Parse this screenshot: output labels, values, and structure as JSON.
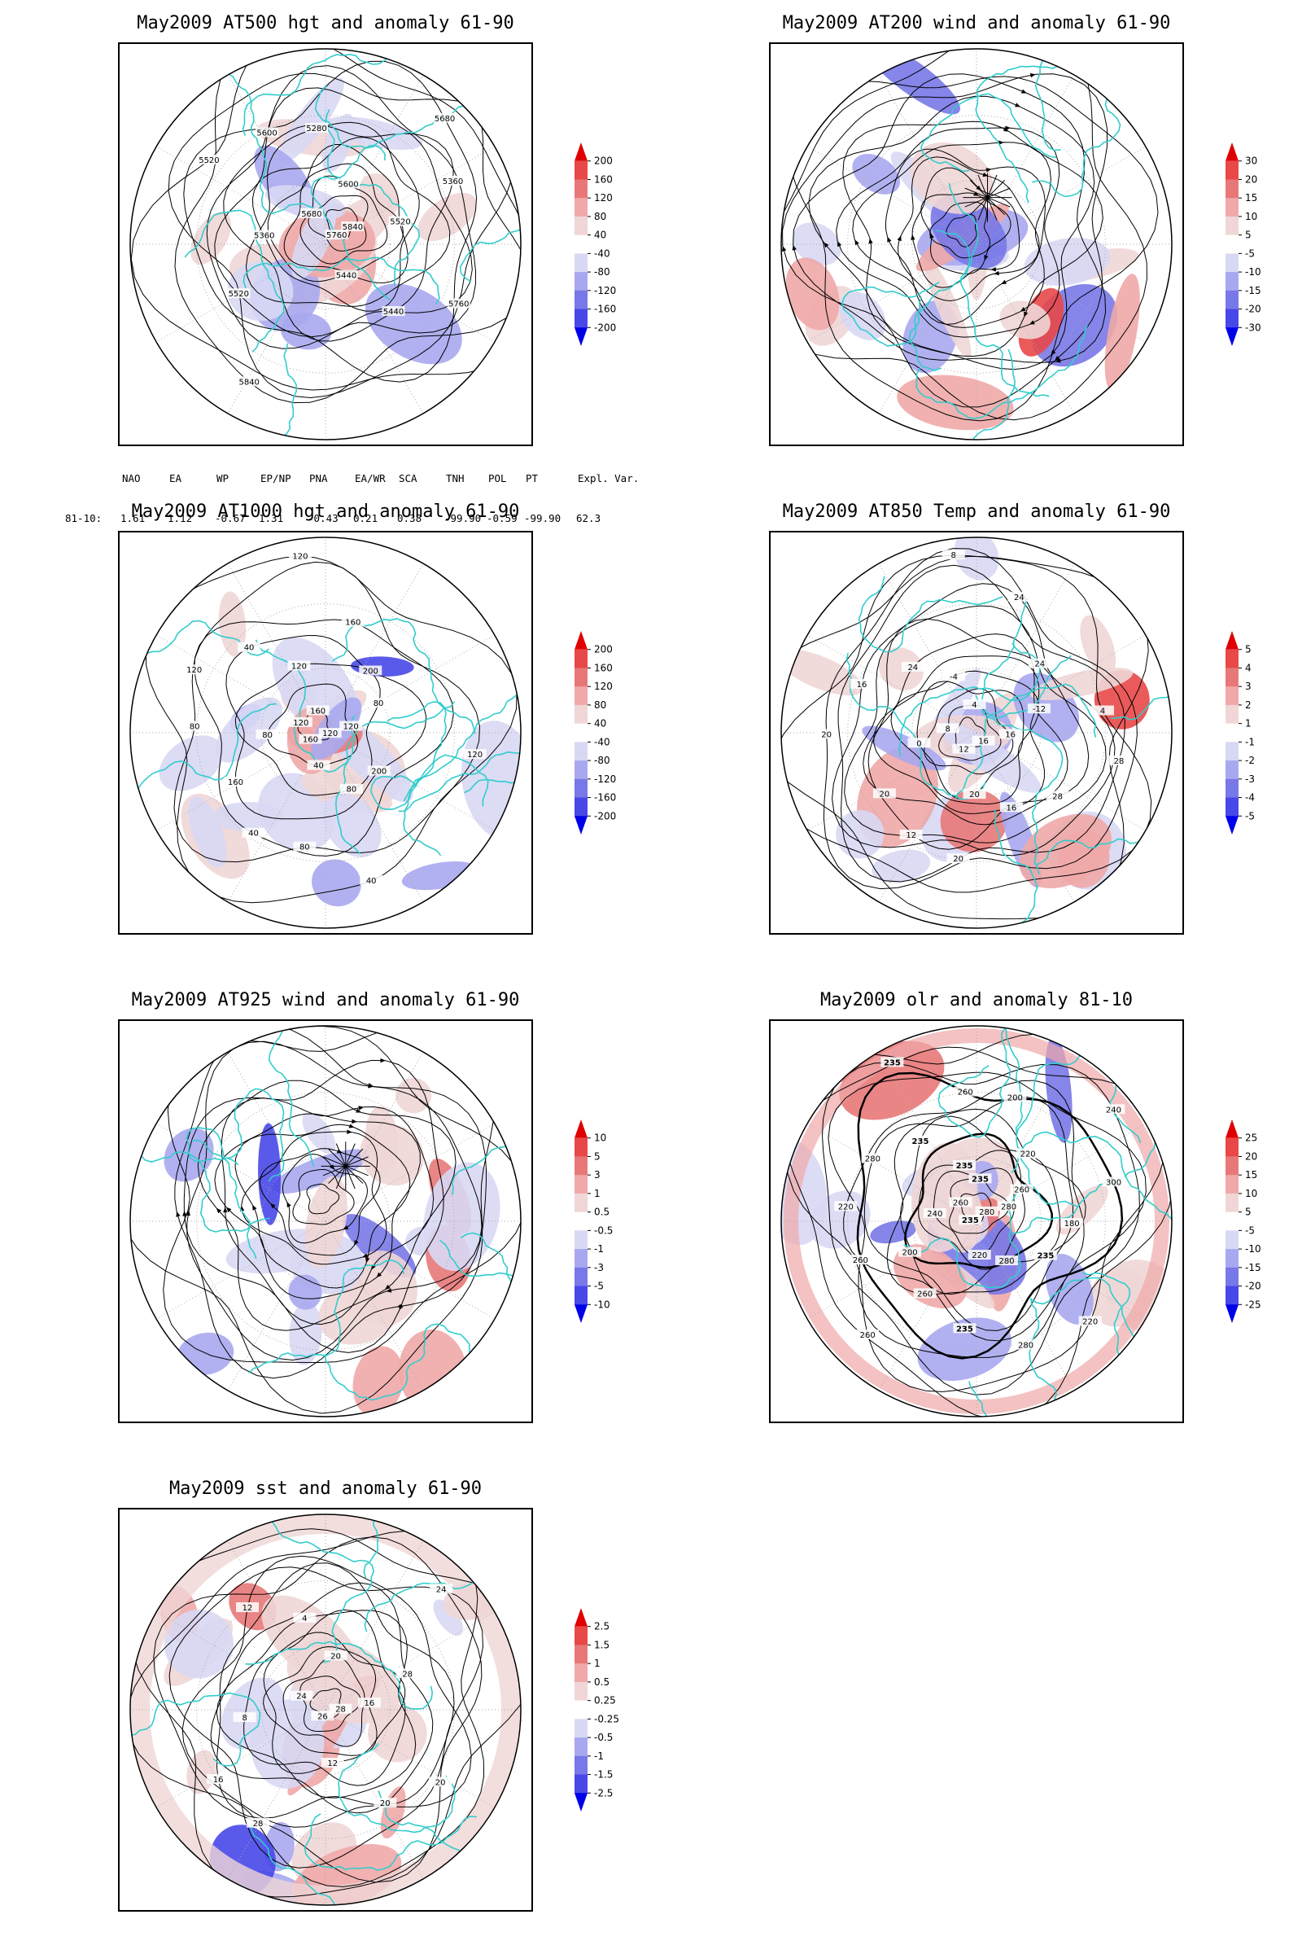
{
  "panels": [
    {
      "id": "at500",
      "title": "May2009 AT500 hgt and anomaly 61-90",
      "colorbar": [
        "200",
        "160",
        "120",
        "80",
        "40",
        "-40",
        "-80",
        "-120",
        "-160",
        "-200"
      ],
      "contour_labels": [
        "5840",
        "5760",
        "5680",
        "5600",
        "5520",
        "5440",
        "5360",
        "5280",
        "5360",
        "5440",
        "5520",
        "5600",
        "5680",
        "5760",
        "5840",
        "5520"
      ]
    },
    {
      "id": "at200",
      "title": "May2009 AT200 wind and anomaly 61-90",
      "colorbar": [
        "30",
        "20",
        "15",
        "10",
        "5",
        "-5",
        "-10",
        "-15",
        "-20",
        "-30"
      ],
      "contour_labels": []
    },
    {
      "id": "at1000",
      "title": "May2009 AT1000 hgt and anomaly 61-90",
      "colorbar": [
        "200",
        "160",
        "120",
        "80",
        "40",
        "-40",
        "-80",
        "-120",
        "-160",
        "-200"
      ],
      "contour_labels": [
        "120",
        "160",
        "120",
        "160",
        "120",
        "40",
        "80",
        "120",
        "80",
        "80",
        "160",
        "40",
        "200",
        "200",
        "40",
        "120",
        "160",
        "120",
        "80",
        "80",
        "120",
        "80",
        "40"
      ]
    },
    {
      "id": "at850",
      "title": "May2009 AT850 Temp and anomaly 61-90",
      "colorbar": [
        "5",
        "4",
        "3",
        "2",
        "1",
        "-1",
        "-2",
        "-3",
        "-4",
        "-5"
      ],
      "contour_labels": [
        "16",
        "12",
        "8",
        "4",
        "16",
        "20",
        "0",
        "-4",
        "-12",
        "16",
        "20",
        "24",
        "24",
        "28",
        "12",
        "16",
        "24",
        "28",
        "20",
        "20",
        "8",
        "4",
        "16"
      ]
    },
    {
      "id": "at925",
      "title": "May2009 AT925 wind and anomaly 61-90",
      "colorbar": [
        "10",
        "5",
        "3",
        "1",
        "0.5",
        "-0.5",
        "-1",
        "-3",
        "-5",
        "-10"
      ],
      "contour_labels": []
    },
    {
      "id": "olr",
      "title": "May2009 olr and anomaly 81-10",
      "colorbar": [
        "25",
        "20",
        "15",
        "10",
        "5",
        "-5",
        "-10",
        "-15",
        "-20",
        "-25"
      ],
      "contour_labels": [
        "280",
        "235",
        "260",
        "235",
        "280",
        "220",
        "240",
        "235",
        "260",
        "280",
        "200",
        "235",
        "220",
        "235",
        "260",
        "280",
        "200",
        "180",
        "235",
        "220",
        "260",
        "300",
        "280",
        "260",
        "235",
        "240",
        "220",
        "260",
        "300",
        "235"
      ]
    },
    {
      "id": "sst",
      "title": "May2009 sst and anomaly 61-90",
      "colorbar": [
        "2.5",
        "1.5",
        "1",
        "0.5",
        "0.25",
        "-0.25",
        "-0.5",
        "-1",
        "-1.5",
        "-2.5"
      ],
      "contour_labels": [
        "28",
        "26",
        "24",
        "20",
        "16",
        "12",
        "8",
        "4",
        "28",
        "20",
        "16",
        "12",
        "24",
        "20",
        "28",
        "24"
      ]
    }
  ],
  "indices": {
    "header": [
      "NAO",
      "EA",
      "WP",
      "EP/NP",
      "PNA",
      "EA/WR",
      "SCA",
      "TNH",
      "POL",
      "PT",
      "Expl. Var."
    ],
    "row_label": "81-10:",
    "values": [
      "1.61",
      "1.12",
      "-0.67",
      "1.31",
      "-0.43",
      "0.21",
      "0.38",
      "-99.90",
      "-0.59",
      "-99.90",
      "62.3"
    ]
  },
  "colors": {
    "contour": "#000000",
    "coast": "#33cccc",
    "grid": "#aaaaaa",
    "anom_pos": [
      "#f0d6d6",
      "#f0a8a8",
      "#e87878",
      "#e84848",
      "#e00000"
    ],
    "anom_neg": [
      "#d8d8f4",
      "#a8a8f0",
      "#7878e8",
      "#4848e8",
      "#0000e8"
    ]
  }
}
